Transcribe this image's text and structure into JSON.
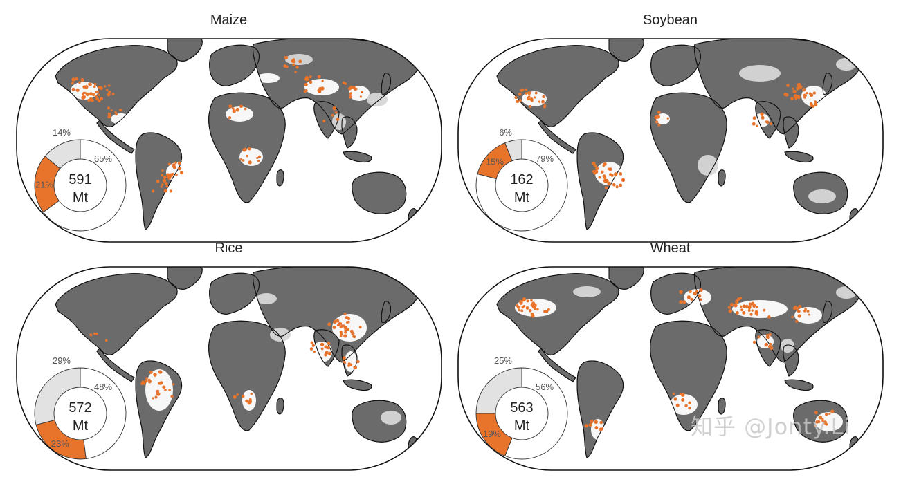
{
  "colors": {
    "production_hotspot": "#e8742c",
    "harvested_area": "#ffffff",
    "other_cropland": "#d7d7d7",
    "non_cropland": "#6b6b6b",
    "ocean": "#ffffff",
    "outline": "#111111"
  },
  "panels": [
    {
      "id": "maize",
      "title": "Maize",
      "total": "591",
      "unit": "Mt",
      "segments": [
        {
          "label": "65%",
          "share": 65,
          "color": "#ffffff"
        },
        {
          "label": "21%",
          "share": 21,
          "color": "#e8742c"
        },
        {
          "label": "14%",
          "share": 14,
          "color": "#e2e2e2"
        }
      ]
    },
    {
      "id": "soybean",
      "title": "Soybean",
      "total": "162",
      "unit": "Mt",
      "segments": [
        {
          "label": "79%",
          "share": 79,
          "color": "#ffffff"
        },
        {
          "label": "15%",
          "share": 15,
          "color": "#e8742c"
        },
        {
          "label": "6%",
          "share": 6,
          "color": "#e2e2e2"
        }
      ]
    },
    {
      "id": "rice",
      "title": "Rice",
      "total": "572",
      "unit": "Mt",
      "segments": [
        {
          "label": "48%",
          "share": 48,
          "color": "#ffffff"
        },
        {
          "label": "23%",
          "share": 23,
          "color": "#e8742c"
        },
        {
          "label": "29%",
          "share": 29,
          "color": "#e2e2e2"
        }
      ]
    },
    {
      "id": "wheat",
      "title": "Wheat",
      "total": "563",
      "unit": "Mt",
      "segments": [
        {
          "label": "56%",
          "share": 56,
          "color": "#ffffff"
        },
        {
          "label": "19%",
          "share": 19,
          "color": "#e8742c"
        },
        {
          "label": "25%",
          "share": 25,
          "color": "#e2e2e2"
        }
      ]
    }
  ],
  "watermark": "知乎 @Jonty.Li"
}
